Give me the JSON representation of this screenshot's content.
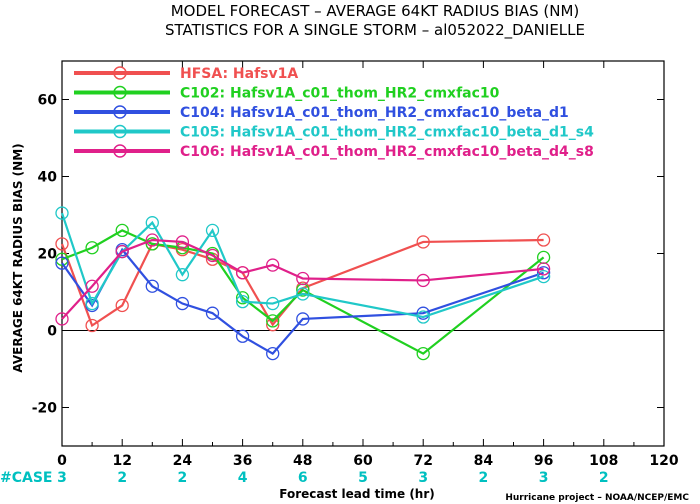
{
  "title_line1": "MODEL FORECAST – AVERAGE 64KT RADIUS BIAS (NM)",
  "title_line2": "STATISTICS FOR A SINGLE STORM – al052022_DANIELLE",
  "credit": "Hurricane project – NOAA/NCEP/EMC",
  "case_label": "#CASE",
  "case_color": "#00c0c0",
  "chart_data": {
    "type": "line",
    "xlabel": "Forecast lead time (hr)",
    "ylabel": "AVERAGE 64KT RADIUS BIAS (NM)",
    "xlim": [
      0,
      120
    ],
    "ylim": [
      -30,
      70
    ],
    "xticks": [
      0,
      12,
      24,
      36,
      48,
      60,
      72,
      84,
      96,
      108,
      120
    ],
    "yticks": [
      -20,
      0,
      20,
      40,
      60
    ],
    "zero_line": true,
    "legend_position": "top-left",
    "case_counts": [
      {
        "x": 0,
        "n": "3"
      },
      {
        "x": 12,
        "n": "2"
      },
      {
        "x": 24,
        "n": "2"
      },
      {
        "x": 36,
        "n": "4"
      },
      {
        "x": 48,
        "n": "6"
      },
      {
        "x": 60,
        "n": "5"
      },
      {
        "x": 72,
        "n": "3"
      },
      {
        "x": 84,
        "n": "2"
      },
      {
        "x": 96,
        "n": "3"
      },
      {
        "x": 108,
        "n": "2"
      }
    ],
    "series": [
      {
        "name": "HFSA: Hafsv1A",
        "color": "#f05050",
        "points": [
          [
            0,
            22.5
          ],
          [
            6,
            1.3
          ],
          [
            12,
            6.5
          ],
          [
            18,
            22.5
          ],
          [
            24,
            21
          ],
          [
            30,
            18.5
          ],
          [
            36,
            15
          ],
          [
            42,
            1.5
          ],
          [
            48,
            11
          ],
          [
            72,
            23
          ],
          [
            96,
            23.5
          ]
        ]
      },
      {
        "name": "C102: Hafsv1A_c01_thom_HR2_cmxfac10",
        "color": "#20d020",
        "points": [
          [
            0,
            18.5
          ],
          [
            6,
            21.5
          ],
          [
            12,
            26
          ],
          [
            18,
            22.5
          ],
          [
            24,
            21.5
          ],
          [
            30,
            20
          ],
          [
            36,
            8.5
          ],
          [
            42,
            2.5
          ],
          [
            48,
            10.5
          ],
          [
            72,
            -6
          ],
          [
            96,
            19
          ]
        ]
      },
      {
        "name": "C104: Hafsv1A_c01_thom_HR2_cmxfac10_beta_d1",
        "color": "#3050e0",
        "points": [
          [
            0,
            17.5
          ],
          [
            6,
            6.5
          ],
          [
            12,
            21
          ],
          [
            18,
            11.5
          ],
          [
            24,
            7
          ],
          [
            30,
            4.5
          ],
          [
            36,
            -1.5
          ],
          [
            42,
            -6
          ],
          [
            48,
            3
          ],
          [
            72,
            4.5
          ],
          [
            96,
            15
          ]
        ]
      },
      {
        "name": "C105: Hafsv1A_c01_thom_HR2_cmxfac10_beta_d1_s4",
        "color": "#20c8c8",
        "points": [
          [
            0,
            30.5
          ],
          [
            6,
            7
          ],
          [
            12,
            20.5
          ],
          [
            18,
            28
          ],
          [
            24,
            14.5
          ],
          [
            30,
            26
          ],
          [
            36,
            7.5
          ],
          [
            42,
            7
          ],
          [
            48,
            9.5
          ],
          [
            72,
            3.5
          ],
          [
            96,
            14
          ]
        ]
      },
      {
        "name": "C106: Hafsv1A_c01_thom_HR2_cmxfac10_beta_d4_s8",
        "color": "#e0208a",
        "points": [
          [
            0,
            3
          ],
          [
            6,
            11.5
          ],
          [
            12,
            20.5
          ],
          [
            18,
            23.5
          ],
          [
            24,
            23
          ],
          [
            30,
            19.5
          ],
          [
            36,
            15
          ],
          [
            42,
            17
          ],
          [
            48,
            13.5
          ],
          [
            72,
            13
          ],
          [
            96,
            16
          ]
        ]
      }
    ]
  }
}
